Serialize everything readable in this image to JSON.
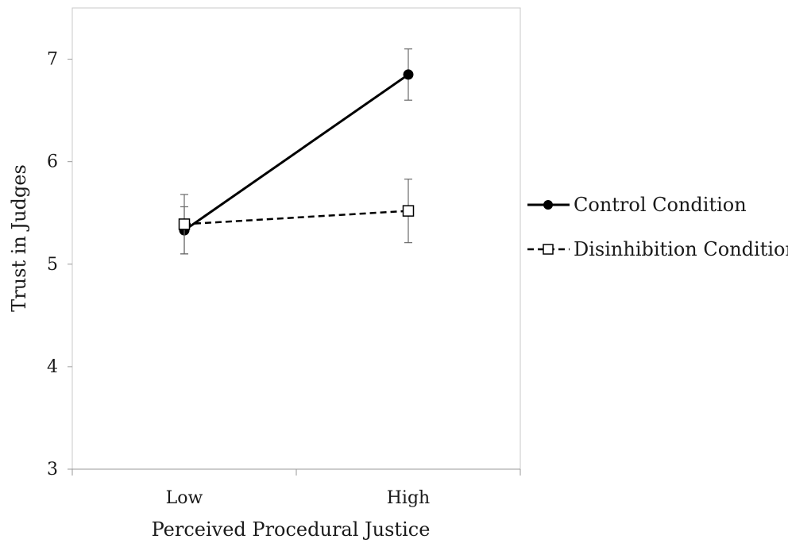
{
  "chart_data": {
    "type": "line",
    "categories": [
      "Low",
      "High"
    ],
    "xlabel": "Perceived Procedural Justice",
    "ylabel": "Trust in Judges",
    "ylim": [
      3,
      7.5
    ],
    "yticks": [
      3,
      4,
      5,
      6,
      7
    ],
    "grid": false,
    "legend_position": "right",
    "series": [
      {
        "name": "Control Condition",
        "values": [
          5.33,
          6.85
        ],
        "error": [
          0.23,
          0.25
        ],
        "marker": "filled-circle",
        "line_style": "solid",
        "color": "#000000"
      },
      {
        "name": "Disinhibition Condition",
        "values": [
          5.39,
          5.52
        ],
        "error": [
          0.29,
          0.31
        ],
        "marker": "open-square",
        "line_style": "dashed",
        "color": "#000000"
      }
    ]
  }
}
